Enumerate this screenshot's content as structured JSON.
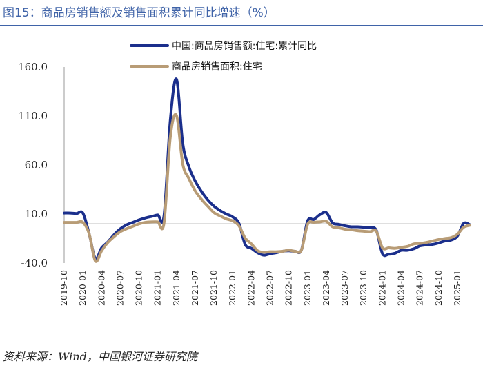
{
  "title": "图15：商品房销售额及销售面积累计同比增速（%）",
  "source": "资料来源：Wind，中国银河证券研究院",
  "colors": {
    "accent": "#3f63a8",
    "series1": "#1b2f8c",
    "series2": "#b89c76",
    "zero_line": "#bfbfbf"
  },
  "chart_data": {
    "type": "line",
    "title": "图15：商品房销售额及销售面积累计同比增速（%）",
    "xlabel": "",
    "ylabel": "",
    "ylim": [
      -40,
      160
    ],
    "yticks": [
      160.0,
      110.0,
      60.0,
      10.0,
      -40.0
    ],
    "ytick_labels": [
      "160.0",
      "110.0",
      "60.0",
      "10.0",
      "-40.0"
    ],
    "xtick_labels": [
      "2019-10",
      "2020-01",
      "2020-04",
      "2020-07",
      "2020-10",
      "2021-01",
      "2021-04",
      "2021-07",
      "2021-10",
      "2022-01",
      "2022-04",
      "2022-07",
      "2022-10",
      "2023-01",
      "2023-04",
      "2023-07",
      "2023-10",
      "2024-01",
      "2024-04",
      "2024-07",
      "2024-10",
      "2025-01"
    ],
    "legend_position": "top-center",
    "x_labels": [
      "2019-10",
      "2019-11",
      "2019-12",
      "2020-01",
      "2020-02",
      "2020-03",
      "2020-04",
      "2020-05",
      "2020-06",
      "2020-07",
      "2020-08",
      "2020-09",
      "2020-10",
      "2020-11",
      "2020-12",
      "2021-01",
      "2021-02",
      "2021-03",
      "2021-04",
      "2021-05",
      "2021-06",
      "2021-07",
      "2021-08",
      "2021-09",
      "2021-10",
      "2021-11",
      "2021-12",
      "2022-01",
      "2022-02",
      "2022-03",
      "2022-04",
      "2022-05",
      "2022-06",
      "2022-07",
      "2022-08",
      "2022-09",
      "2022-10",
      "2022-11",
      "2022-12",
      "2023-01",
      "2023-02",
      "2023-03",
      "2023-04",
      "2023-05",
      "2023-06",
      "2023-07",
      "2023-08",
      "2023-09",
      "2023-10",
      "2023-11",
      "2023-12",
      "2024-01",
      "2024-02",
      "2024-03",
      "2024-04",
      "2024-05",
      "2024-06",
      "2024-07",
      "2024-08",
      "2024-09",
      "2024-10",
      "2024-11",
      "2024-12",
      "2025-01",
      "2025-02",
      "2025-03"
    ],
    "series": [
      {
        "name": "中国:商品房销售额:住宅:累计同比",
        "values": [
          11.0,
          11.0,
          10.5,
          11.0,
          -10.0,
          -35.5,
          -24.5,
          -18.5,
          -11.0,
          -5.0,
          -1.0,
          1.5,
          4.0,
          6.0,
          7.5,
          9.0,
          8.5,
          105.5,
          147.5,
          82.0,
          58.0,
          43.5,
          33.0,
          24.5,
          18.0,
          13.5,
          10.0,
          7.0,
          0.5,
          -21.0,
          -25.0,
          -29.5,
          -32.0,
          -30.5,
          -29.5,
          -28.0,
          -27.5,
          -28.0,
          -27.0,
          3.0,
          4.5,
          9.5,
          11.5,
          1.0,
          -0.5,
          -2.0,
          -3.0,
          -3.0,
          -3.5,
          -4.0,
          -6.5,
          -30.5,
          -31.0,
          -30.0,
          -27.0,
          -27.0,
          -25.5,
          -22.5,
          -21.5,
          -21.0,
          -19.5,
          -17.5,
          -16.5,
          -12.5,
          0.5,
          -1.0
        ]
      },
      {
        "name": "商品房销售面积:住宅",
        "values": [
          1.5,
          1.5,
          1.5,
          1.5,
          -10.0,
          -38.0,
          -27.5,
          -19.0,
          -13.0,
          -8.0,
          -5.0,
          -2.5,
          0.0,
          1.5,
          2.0,
          2.0,
          1.0,
          88.0,
          110.5,
          61.0,
          46.0,
          33.5,
          25.0,
          18.0,
          11.5,
          8.0,
          5.0,
          3.0,
          -2.0,
          -14.5,
          -20.5,
          -27.5,
          -29.0,
          -28.5,
          -28.5,
          -28.0,
          -27.0,
          -28.0,
          -27.0,
          -0.5,
          1.5,
          2.0,
          2.5,
          -3.0,
          -4.0,
          -5.5,
          -6.0,
          -7.0,
          -7.5,
          -8.0,
          -7.5,
          -24.5,
          -24.5,
          -25.0,
          -24.0,
          -23.0,
          -20.5,
          -20.0,
          -19.0,
          -17.5,
          -16.0,
          -15.0,
          -14.0,
          -10.5,
          -3.5,
          -1.5
        ]
      }
    ]
  }
}
